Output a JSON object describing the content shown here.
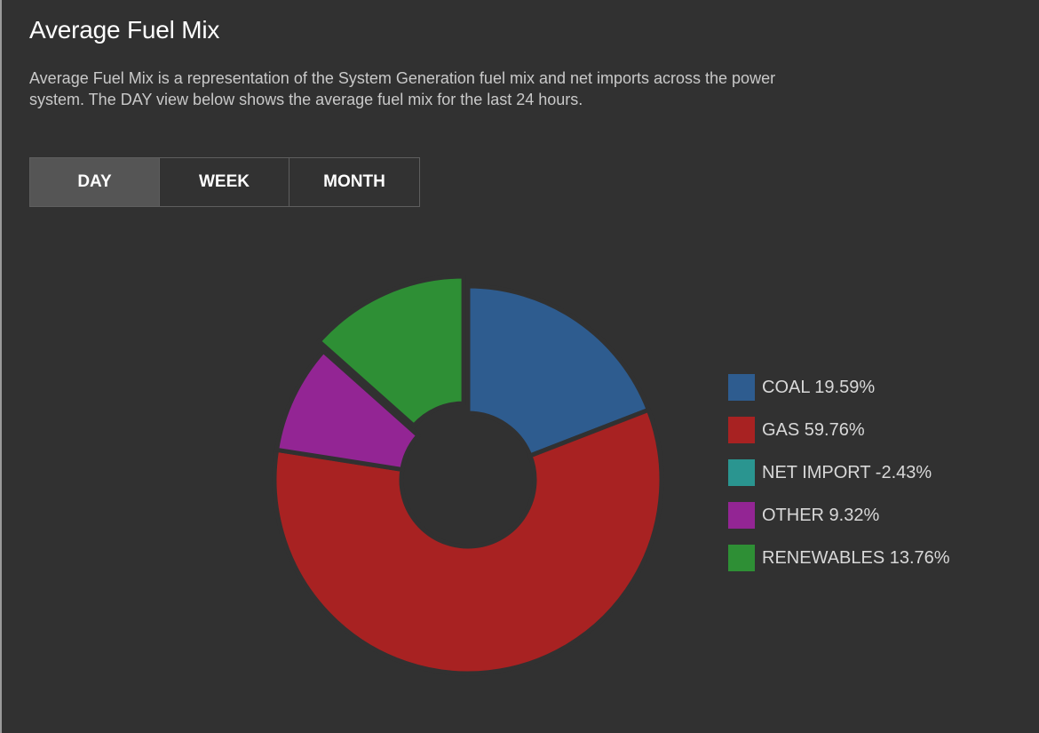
{
  "header": {
    "title": "Average Fuel Mix",
    "description": "Average Fuel Mix is a representation of the System Generation fuel mix and net imports across the power system. The DAY view below shows the average fuel mix for the last 24 hours."
  },
  "tabs": [
    {
      "label": "DAY",
      "active": true
    },
    {
      "label": "WEEK",
      "active": false
    },
    {
      "label": "MONTH",
      "active": false
    }
  ],
  "chart_data": {
    "type": "pie",
    "title": "",
    "donut": true,
    "categories": [
      "COAL",
      "GAS",
      "NET IMPORT",
      "OTHER",
      "RENEWABLES"
    ],
    "values": [
      19.59,
      59.76,
      -2.43,
      9.32,
      13.76
    ],
    "unit": "%",
    "colors": [
      "#2e5c8f",
      "#a82222",
      "#2a9590",
      "#932594",
      "#2e8f35"
    ],
    "exploded": [
      "RENEWABLES"
    ],
    "legend_position": "right",
    "legend_labels": [
      "COAL 19.59%",
      "GAS 59.76%",
      "NET IMPORT -2.43%",
      "OTHER 9.32%",
      "RENEWABLES 13.76%"
    ]
  }
}
